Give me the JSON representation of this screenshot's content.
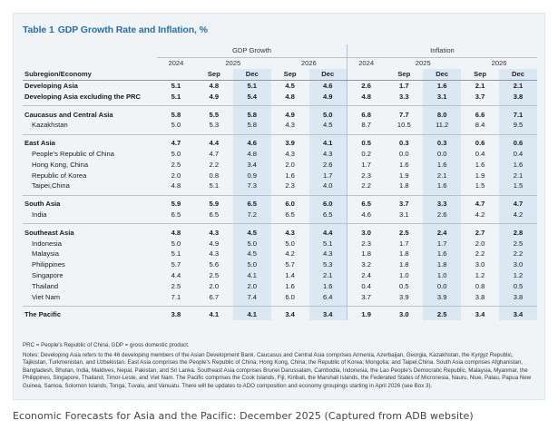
{
  "table": {
    "number": "Table 1",
    "title": "GDP Growth Rate and Inflation, %",
    "group_headers": [
      "GDP Growth",
      "Inflation"
    ],
    "year_headers": [
      "2024",
      "2025",
      "2026",
      "2024",
      "2025",
      "2026"
    ],
    "month_headers": [
      "Sep",
      "Dec",
      "Sep",
      "Dec",
      "Sep",
      "Dec",
      "Sep",
      "Dec"
    ],
    "row_header": "Subregion/Economy",
    "rows": [
      {
        "name": "Developing Asia",
        "bold": true,
        "values": [
          "5.1",
          "4.8",
          "5.1",
          "4.5",
          "4.6",
          "2.6",
          "1.7",
          "1.6",
          "2.1",
          "2.1"
        ]
      },
      {
        "name": "Developing Asia excluding the PRC",
        "bold": true,
        "values": [
          "5.1",
          "4.9",
          "5.4",
          "4.8",
          "4.9",
          "4.8",
          "3.3",
          "3.1",
          "3.7",
          "3.8"
        ]
      },
      {
        "name": "Caucasus and Central Asia",
        "bold": true,
        "values": [
          "5.8",
          "5.5",
          "5.8",
          "4.9",
          "5.0",
          "6.8",
          "7.7",
          "8.0",
          "6.6",
          "7.1"
        ]
      },
      {
        "name": "Kazakhstan",
        "bold": false,
        "values": [
          "5.0",
          "5.3",
          "5.8",
          "4.3",
          "4.5",
          "8.7",
          "10.5",
          "11.2",
          "8.4",
          "9.5"
        ]
      },
      {
        "name": "East Asia",
        "bold": true,
        "values": [
          "4.7",
          "4.4",
          "4.6",
          "3.9",
          "4.1",
          "0.5",
          "0.3",
          "0.3",
          "0.6",
          "0.6"
        ]
      },
      {
        "name": "People's Republic of China",
        "bold": false,
        "values": [
          "5.0",
          "4.7",
          "4.8",
          "4.3",
          "4.3",
          "0.2",
          "0.0",
          "0.0",
          "0.4",
          "0.4"
        ]
      },
      {
        "name": "Hong Kong, China",
        "bold": false,
        "values": [
          "2.5",
          "2.2",
          "3.4",
          "2.0",
          "2.6",
          "1.7",
          "1.6",
          "1.6",
          "1.6",
          "1.6"
        ]
      },
      {
        "name": "Republic of Korea",
        "bold": false,
        "values": [
          "2.0",
          "0.8",
          "0.9",
          "1.6",
          "1.7",
          "2.3",
          "1.9",
          "2.1",
          "1.9",
          "2.1"
        ]
      },
      {
        "name": "Taipei,China",
        "bold": false,
        "values": [
          "4.8",
          "5.1",
          "7.3",
          "2.3",
          "4.0",
          "2.2",
          "1.8",
          "1.6",
          "1.5",
          "1.5"
        ]
      },
      {
        "name": "South Asia",
        "bold": true,
        "values": [
          "5.9",
          "5.9",
          "6.5",
          "6.0",
          "6.0",
          "6.5",
          "3.7",
          "3.3",
          "4.7",
          "4.7"
        ]
      },
      {
        "name": "India",
        "bold": false,
        "values": [
          "6.5",
          "6.5",
          "7.2",
          "6.5",
          "6.5",
          "4.6",
          "3.1",
          "2.6",
          "4.2",
          "4.2"
        ]
      },
      {
        "name": "Southeast Asia",
        "bold": true,
        "values": [
          "4.8",
          "4.3",
          "4.5",
          "4.3",
          "4.4",
          "3.0",
          "2.5",
          "2.4",
          "2.7",
          "2.8"
        ]
      },
      {
        "name": "Indonesia",
        "bold": false,
        "values": [
          "5.0",
          "4.9",
          "5.0",
          "5.0",
          "5.1",
          "2.3",
          "1.7",
          "1.7",
          "2.0",
          "2.5"
        ]
      },
      {
        "name": "Malaysia",
        "bold": false,
        "values": [
          "5.1",
          "4.3",
          "4.5",
          "4.2",
          "4.3",
          "1.8",
          "1.8",
          "1.6",
          "2.2",
          "2.2"
        ]
      },
      {
        "name": "Philippines",
        "bold": false,
        "values": [
          "5.7",
          "5.6",
          "5.0",
          "5.7",
          "5.3",
          "3.2",
          "1.8",
          "1.8",
          "3.0",
          "3.0"
        ]
      },
      {
        "name": "Singapore",
        "bold": false,
        "values": [
          "4.4",
          "2.5",
          "4.1",
          "1.4",
          "2.1",
          "2.4",
          "1.0",
          "1.0",
          "1.2",
          "1.2"
        ]
      },
      {
        "name": "Thailand",
        "bold": false,
        "values": [
          "2.5",
          "2.0",
          "2.0",
          "1.6",
          "1.6",
          "0.4",
          "0.5",
          "0.0",
          "0.8",
          "0.5"
        ]
      },
      {
        "name": "Viet Nam",
        "bold": false,
        "values": [
          "7.1",
          "6.7",
          "7.4",
          "6.0",
          "6.4",
          "3.7",
          "3.9",
          "3.9",
          "3.8",
          "3.8"
        ]
      },
      {
        "name": "The Pacific",
        "bold": true,
        "values": [
          "3.8",
          "4.1",
          "4.1",
          "3.4",
          "3.4",
          "1.9",
          "3.0",
          "2.5",
          "3.4",
          "3.4"
        ]
      }
    ],
    "abbrev_note": "PRC = People's Republic of China, GDP = gross domestic product.",
    "notes": "Notes: Developing Asia refers to the 46 developing members of the Asian Development Bank. Caucasus and Central Asia comprises Armenia, Azerbaijan, Georgia, Kazakhstan, the Kyrgyz Republic, Tajikistan, Turkmenistan, and Uzbekistan. East Asia comprises the People's Republic of China; Hong Kong, China; the Republic of Korea; Mongolia; and Taipei,China. South Asia comprises Afghanistan, Bangladesh, Bhutan, India, Maldives, Nepal, Pakistan, and Sri Lanka. Southeast Asia comprises Brunei Darussalam, Cambodia, Indonesia, the Lao People's Democratic Republic, Malaysia, Myanmar, the Philippines, Singapore, Thailand, Timor-Leste, and Viet Nam. The Pacific comprises the Cook Islands, Fiji, Kiribati, the Marshall Islands, the Federated States of Micronesia, Nauru, Niue, Palau, Papua New Guinea, Samoa, Solomon Islands, Tonga, Tuvalu, and Vanuatu. There will be updates to ADO composition and economy groupings starting in April 2026 (see Box 3)."
  },
  "caption": "Economic Forecasts for Asia and the Pacific: December 2025 (Captured from ADB website)",
  "colors": {
    "title": "#2a6fa8",
    "highlight": "#dbe8f4",
    "background": "#f1f4f7"
  }
}
